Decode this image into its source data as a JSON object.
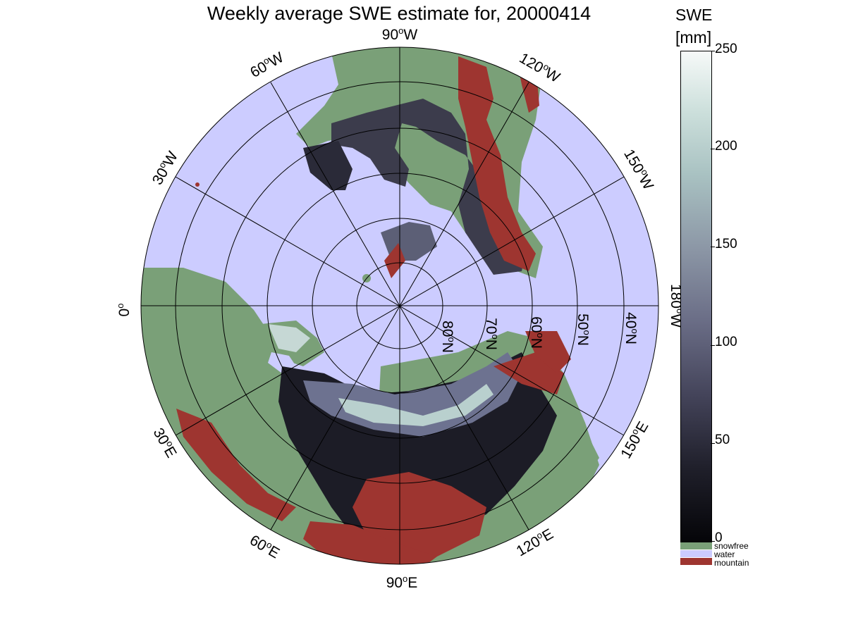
{
  "title": "Weekly average SWE estimate for, 20000414",
  "colorbar": {
    "title": "SWE",
    "unit": "[mm]",
    "ticks": [
      "0",
      "50",
      "100",
      "150",
      "200",
      "250"
    ],
    "range": [
      0,
      250
    ]
  },
  "legend": [
    {
      "label": "snowfree",
      "color": "#7aa078"
    },
    {
      "label": "water",
      "color": "#ccccff"
    },
    {
      "label": "mountain",
      "color": "#9e3530"
    }
  ],
  "longitude_labels": {
    "deg_symbol": "o",
    "lon_0": "0",
    "lon_0_suffix": "",
    "lon_30w": "30",
    "lon_30w_suffix": "W",
    "lon_60w": "60",
    "lon_60w_suffix": "W",
    "lon_90w": "90",
    "lon_90w_suffix": "W",
    "lon_120w": "120",
    "lon_120w_suffix": "W",
    "lon_150w": "150",
    "lon_150w_suffix": "W",
    "lon_180w": "180",
    "lon_180w_suffix": "W",
    "lon_150e": "150",
    "lon_150e_suffix": "E",
    "lon_120e": "120",
    "lon_120e_suffix": "E",
    "lon_90e": "90",
    "lon_90e_suffix": "E",
    "lon_60e": "60",
    "lon_60e_suffix": "E",
    "lon_30e": "30",
    "lon_30e_suffix": "E"
  },
  "latitude_labels": {
    "deg_symbol": "o",
    "lat_40": "40",
    "lat_50": "50",
    "lat_60": "60",
    "lat_70": "70",
    "lat_80": "80",
    "suffix": "N"
  },
  "colors": {
    "water": "#ccccff",
    "snowfree": "#7aa078",
    "mountain": "#9e3530",
    "snow_low": "#0a0a0f",
    "snow_high": "#dfeae6"
  }
}
